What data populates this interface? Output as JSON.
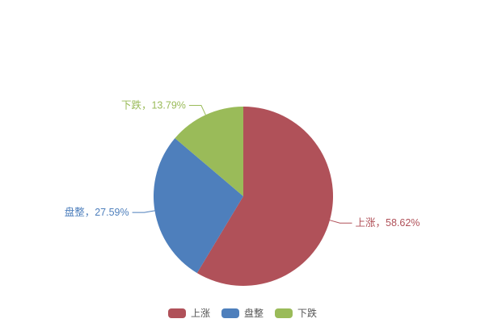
{
  "chart_data": {
    "type": "pie",
    "title": "",
    "start_angle": "top",
    "direction": "clockwise",
    "label_style": "outside-callout",
    "slices": [
      {
        "label": "上涨",
        "value": 58.62,
        "pct_label": "58.62%",
        "callout": "上涨，58.62%",
        "color": "#b05159"
      },
      {
        "label": "盘整",
        "value": 27.59,
        "pct_label": "27.59%",
        "callout": "盘整，27.59%",
        "color": "#4e7fbc"
      },
      {
        "label": "下跌",
        "value": 13.79,
        "pct_label": "13.79%",
        "callout": "下跌，13.79%",
        "color": "#9abb59"
      }
    ],
    "legend": {
      "position": "bottom",
      "items": [
        "上涨",
        "盘整",
        "下跌"
      ]
    }
  }
}
